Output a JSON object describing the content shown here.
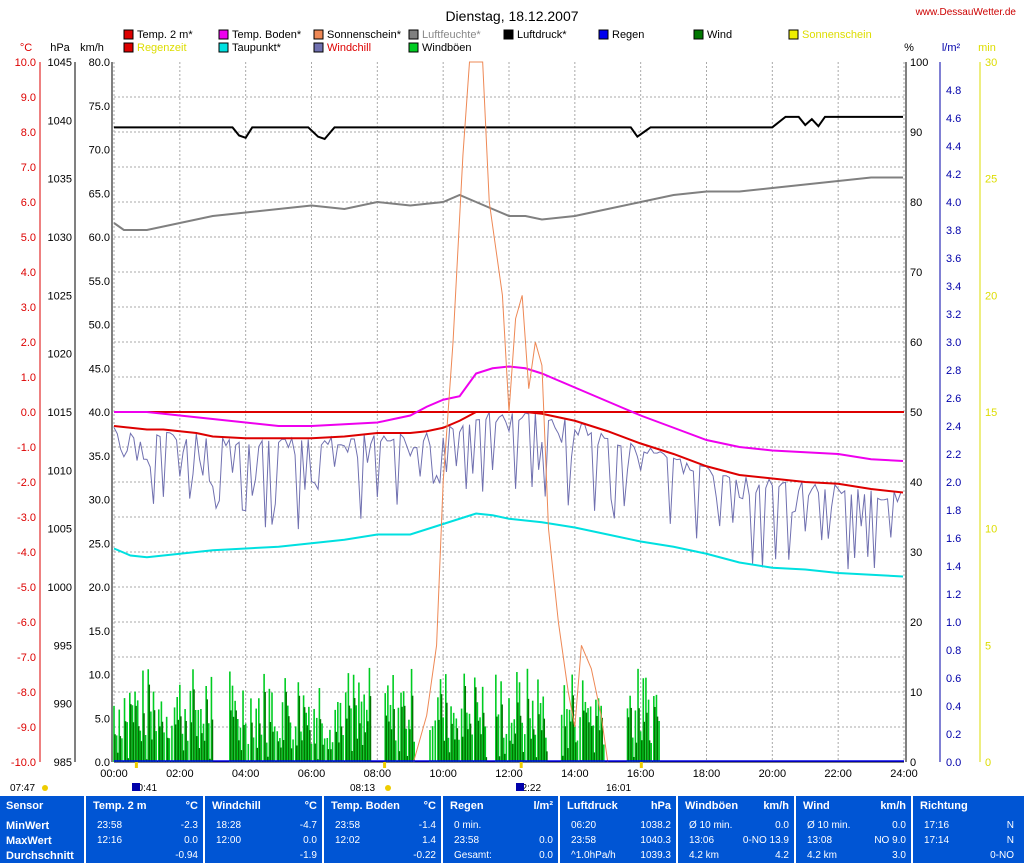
{
  "header": {
    "title": "Dienstag, 18.12.2007",
    "website": "www.DessauWetter.de"
  },
  "colors": {
    "temp2m": "#dd0000",
    "regenzeit": "#dd0000",
    "tempBoden": "#ee00ee",
    "taupunkt": "#00e0e0",
    "sonnenschein": "#ee8855",
    "windchill": "#7070b0",
    "luftfeuchte": "#808080",
    "windboeen": "#00cc22",
    "luftdruck": "#000000",
    "regen": "#0000ee",
    "wind": "#007700",
    "sonne": "#eeee00",
    "stats_bg": "#0055d4"
  },
  "legend": [
    {
      "label": "Temp. 2 m*",
      "key": "temp2m"
    },
    {
      "label": "Regenzeit",
      "key": "regenzeit"
    },
    {
      "label": "Temp. Boden*",
      "key": "tempBoden"
    },
    {
      "label": "Taupunkt*",
      "key": "taupunkt"
    },
    {
      "label": "Sonnenschein*",
      "key": "sonnenschein"
    },
    {
      "label": "Windchill",
      "key": "windchill"
    },
    {
      "label": "Luftfeuchte*",
      "key": "luftfeuchte"
    },
    {
      "label": "Windböen",
      "key": "windboeen"
    },
    {
      "label": "Luftdruck*",
      "key": "luftdruck"
    },
    {
      "label": "Regen",
      "key": "regen"
    },
    {
      "label": "Wind",
      "key": "wind"
    },
    {
      "label": "Sonnenschein",
      "key": "sonne"
    }
  ],
  "chart_data": {
    "type": "line",
    "title": "Dienstag, 18.12.2007",
    "grid": true,
    "x_range_hours": [
      0,
      24
    ],
    "x_ticks": [
      "00:00",
      "02:00",
      "04:00",
      "06:00",
      "08:00",
      "10:00",
      "12:00",
      "14:00",
      "16:00",
      "18:00",
      "20:00",
      "22:00",
      "24:00"
    ],
    "axes": {
      "temp": {
        "unit": "°C",
        "range": [
          -10,
          10
        ],
        "ticks": [
          "10.0",
          "9.0",
          "8.0",
          "7.0",
          "6.0",
          "5.0",
          "4.0",
          "3.0",
          "2.0",
          "1.0",
          "0.0",
          "-1.0",
          "-2.0",
          "-3.0",
          "-4.0",
          "-5.0",
          "-6.0",
          "-7.0",
          "-8.0",
          "-9.0",
          "-10.0"
        ]
      },
      "pressure": {
        "unit": "hPa",
        "range": [
          985,
          1045
        ],
        "ticks": [
          "1045",
          "1040",
          "1035",
          "1030",
          "1025",
          "1020",
          "1015",
          "1010",
          "1005",
          "1000",
          "995",
          "990",
          "985"
        ]
      },
      "wind": {
        "unit": "km/h",
        "range": [
          0,
          80
        ],
        "ticks": [
          "80.0",
          "75.0",
          "70.0",
          "65.0",
          "60.0",
          "55.0",
          "50.0",
          "45.0",
          "40.0",
          "35.0",
          "30.0",
          "25.0",
          "20.0",
          "15.0",
          "10.0",
          "5.0",
          "0.0"
        ]
      },
      "humidity": {
        "unit": "%",
        "range": [
          0,
          100
        ],
        "ticks": [
          "100",
          "90",
          "80",
          "70",
          "60",
          "50",
          "40",
          "30",
          "20",
          "10",
          "0"
        ]
      },
      "rain": {
        "unit": "l/m²",
        "range": [
          0,
          5
        ],
        "ticks": [
          "4.8",
          "4.6",
          "4.4",
          "4.2",
          "4.0",
          "3.8",
          "3.6",
          "3.4",
          "3.2",
          "3.0",
          "2.8",
          "2.6",
          "2.4",
          "2.2",
          "2.0",
          "1.8",
          "1.6",
          "1.4",
          "1.2",
          "1.0",
          "0.8",
          "0.6",
          "0.4",
          "0.2",
          "0.0"
        ]
      },
      "sun": {
        "unit": "min",
        "range": [
          0,
          30
        ],
        "ticks": [
          "30",
          "25",
          "20",
          "15",
          "10",
          "5",
          "0"
        ]
      }
    },
    "series": [
      {
        "name": "Temp. 2 m*",
        "axis": "temp",
        "x": [
          0,
          0.5,
          1,
          1.5,
          2,
          2.5,
          3,
          4,
          5,
          6,
          7,
          7.5,
          8,
          9,
          9.5,
          10,
          10.5,
          11,
          11.5,
          12,
          12.5,
          13,
          13.5,
          14,
          14.5,
          15,
          16,
          17,
          18,
          19,
          20,
          21,
          22,
          23,
          23.97
        ],
        "y": [
          -0.4,
          -0.45,
          -0.5,
          -0.5,
          -0.55,
          -0.6,
          -0.7,
          -0.75,
          -0.75,
          -0.75,
          -0.7,
          -0.65,
          -0.6,
          -0.6,
          -0.55,
          -0.45,
          -0.25,
          0,
          0,
          0,
          0,
          -0.05,
          -0.15,
          -0.25,
          -0.4,
          -0.55,
          -0.9,
          -1.2,
          -1.55,
          -1.8,
          -1.9,
          -2.0,
          -2.05,
          -2.2,
          -2.3
        ]
      },
      {
        "name": "Regenzeit",
        "axis": "temp",
        "x": [
          0,
          24
        ],
        "y": [
          0,
          0
        ]
      },
      {
        "name": "Temp. Boden*",
        "axis": "temp",
        "x": [
          0,
          1,
          2,
          3,
          4,
          5,
          6,
          7,
          8,
          8.5,
          9,
          9.5,
          10,
          10.5,
          11,
          11.5,
          12,
          12.5,
          13,
          13.5,
          14,
          14.5,
          15,
          15.5,
          16,
          17,
          18,
          19,
          20,
          21,
          22,
          23,
          23.97
        ],
        "y": [
          0,
          0,
          -0.1,
          -0.2,
          -0.3,
          -0.4,
          -0.4,
          -0.35,
          -0.3,
          -0.2,
          -0.1,
          0.15,
          0.35,
          0.45,
          1.1,
          1.25,
          1.3,
          1.25,
          1.1,
          0.9,
          0.7,
          0.5,
          0.3,
          0.1,
          -0.1,
          -0.45,
          -0.8,
          -1.0,
          -1.1,
          -1.15,
          -1.2,
          -1.35,
          -1.4
        ]
      },
      {
        "name": "Taupunkt*",
        "axis": "temp",
        "x": [
          0,
          0.5,
          1,
          2,
          3,
          4,
          5,
          6,
          7,
          8,
          9,
          9.5,
          10,
          10.5,
          11,
          11.5,
          12,
          13,
          14,
          15,
          16,
          17,
          18,
          19,
          20,
          21,
          22,
          23,
          23.97
        ],
        "y": [
          -3.9,
          -4.1,
          -4.15,
          -4.05,
          -3.95,
          -3.9,
          -3.85,
          -3.75,
          -3.65,
          -3.5,
          -3.5,
          -3.35,
          -3.2,
          -3.05,
          -2.9,
          -2.95,
          -3.05,
          -3.15,
          -3.3,
          -3.5,
          -3.7,
          -3.85,
          -4.05,
          -4.3,
          -4.45,
          -4.5,
          -4.6,
          -4.65,
          -4.7
        ]
      },
      {
        "name": "Luftfeuchte*",
        "axis": "humidity",
        "x": [
          0,
          0.3,
          1,
          2,
          3,
          4,
          5,
          6,
          7,
          8,
          9,
          10,
          10.5,
          11,
          11.5,
          12,
          12.5,
          13,
          14,
          15,
          16,
          17,
          18,
          19,
          20,
          21,
          22,
          23,
          23.97
        ],
        "y": [
          77,
          76,
          76,
          77,
          78,
          78.5,
          79,
          79.5,
          79,
          80,
          79.5,
          80,
          81,
          80,
          79,
          78,
          78,
          77.5,
          78,
          79,
          80,
          81,
          81.5,
          81.5,
          82,
          82.5,
          83,
          83.5,
          83.5
        ]
      },
      {
        "name": "Luftdruck*",
        "axis": "pressure",
        "x": [
          0,
          3.6,
          3.8,
          4.0,
          4.2,
          5.9,
          6.2,
          6.4,
          6.7,
          7,
          15.7,
          15.9,
          16.1,
          16.3,
          17,
          20,
          20.4,
          20.8,
          21.0,
          21.2,
          21.4,
          21.6,
          22,
          23.97
        ],
        "y": [
          1039.4,
          1039.4,
          1038.7,
          1038.5,
          1039.4,
          1039.4,
          1038.6,
          1038.4,
          1039.4,
          1039.4,
          1039.4,
          1038.6,
          1039.0,
          1039.4,
          1039.4,
          1039.4,
          1040.3,
          1040.3,
          1039.6,
          1040.1,
          1039.5,
          1040.3,
          1040.3,
          1040.3
        ]
      },
      {
        "name": "Sonnenschein*",
        "axis": "sun",
        "x": [
          9.1,
          9.5,
          9.8,
          10.0,
          10.3,
          10.6,
          10.8,
          11.0,
          11.2,
          11.4,
          11.6,
          11.8,
          12.0,
          12.2,
          12.4,
          12.6,
          12.8,
          13.0,
          13.2,
          13.5,
          13.8,
          14.0,
          14.2,
          14.5,
          14.8,
          15.0
        ],
        "y": [
          0,
          2,
          5,
          12,
          18,
          26,
          32,
          33,
          30,
          24,
          22,
          20,
          15,
          19,
          20,
          16,
          18,
          17,
          10,
          6,
          3,
          1.5,
          5,
          4,
          2,
          0
        ]
      }
    ],
    "markers": [
      {
        "label": "07:47",
        "kind": "sunrise"
      },
      {
        "label": "00:41",
        "kind": "moon"
      },
      {
        "label": "08:13",
        "kind": "sun"
      },
      {
        "label": "12:22",
        "kind": "moon"
      },
      {
        "label": "16:01",
        "kind": "sunset"
      }
    ]
  },
  "stats": {
    "row_labels": [
      "Sensor",
      "MinWert",
      "MaxWert",
      "Durchschnitt"
    ],
    "panels": [
      {
        "header": "Temp. 2 m",
        "unit": "°C",
        "rows": [
          [
            "23:58",
            "-2.3"
          ],
          [
            "12:16",
            "0.0"
          ],
          [
            "",
            "-0.94"
          ]
        ]
      },
      {
        "header": "Windchill",
        "unit": "°C",
        "rows": [
          [
            "18:28",
            "-4.7"
          ],
          [
            "12:00",
            "0.0"
          ],
          [
            "",
            "-1.9"
          ]
        ]
      },
      {
        "header": "Temp. Boden",
        "unit": "°C",
        "rows": [
          [
            "23:58",
            "-1.4"
          ],
          [
            "12:02",
            "1.4"
          ],
          [
            "",
            "-0.22"
          ]
        ]
      },
      {
        "header": "Regen",
        "unit": "l/m²",
        "rows": [
          [
            "0 min.",
            ""
          ],
          [
            "23:58",
            "0.0"
          ],
          [
            "Gesamt:",
            "0.0"
          ]
        ]
      },
      {
        "header": "Luftdruck",
        "unit": "hPa",
        "rows": [
          [
            "06:20",
            "1038.2"
          ],
          [
            "23:58",
            "1040.3"
          ],
          [
            "^1.0hPa/h",
            "1039.3"
          ]
        ]
      },
      {
        "header": "Windböen",
        "unit": "km/h",
        "rows": [
          [
            "Ø 10 min.",
            "0.0"
          ],
          [
            "13:06",
            "0-NO 13.9"
          ],
          [
            "4.2 km",
            "4.2"
          ]
        ]
      },
      {
        "header": "Wind",
        "unit": "km/h",
        "rows": [
          [
            "Ø 10 min.",
            "0.0"
          ],
          [
            "13:08",
            "NO 9.0"
          ],
          [
            "4.2 km",
            "3.0"
          ]
        ]
      },
      {
        "header": "Richtung",
        "unit": "",
        "rows": [
          [
            "17:16",
            "N"
          ],
          [
            "17:14",
            "N"
          ],
          [
            "",
            "0-NO"
          ]
        ]
      }
    ]
  }
}
